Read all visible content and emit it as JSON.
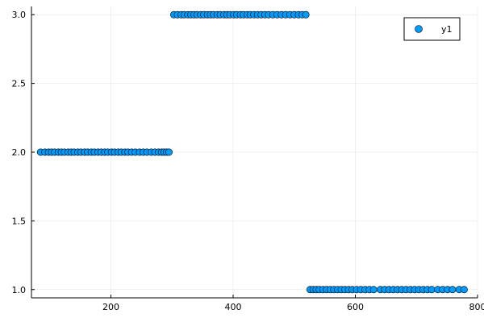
{
  "chart_data": {
    "type": "scatter",
    "title": "",
    "xlabel": "",
    "ylabel": "",
    "xlim": [
      70,
      800
    ],
    "ylim": [
      0.94,
      3.06
    ],
    "x_ticks": [
      200,
      400,
      600,
      800
    ],
    "y_ticks": [
      1.0,
      1.5,
      2.0,
      2.5,
      3.0
    ],
    "x_tick_labels": [
      "200",
      "400",
      "600",
      "800"
    ],
    "y_tick_labels": [
      "1.0",
      "1.5",
      "2.0",
      "2.5",
      "3.0"
    ],
    "grid": true,
    "legend_position": "top-right",
    "series": [
      {
        "name": "y1",
        "color": "#009AFA",
        "points": [
          [
            85,
            2
          ],
          [
            92,
            2
          ],
          [
            98,
            2
          ],
          [
            103,
            2
          ],
          [
            108,
            2
          ],
          [
            114,
            2
          ],
          [
            119,
            2
          ],
          [
            124,
            2
          ],
          [
            130,
            2
          ],
          [
            135,
            2
          ],
          [
            140,
            2
          ],
          [
            146,
            2
          ],
          [
            151,
            2
          ],
          [
            157,
            2
          ],
          [
            162,
            2
          ],
          [
            168,
            2
          ],
          [
            173,
            2
          ],
          [
            179,
            2
          ],
          [
            184,
            2
          ],
          [
            190,
            2
          ],
          [
            195,
            2
          ],
          [
            201,
            2
          ],
          [
            206,
            2
          ],
          [
            212,
            2
          ],
          [
            217,
            2
          ],
          [
            223,
            2
          ],
          [
            228,
            2
          ],
          [
            234,
            2
          ],
          [
            240,
            2
          ],
          [
            247,
            2
          ],
          [
            253,
            2
          ],
          [
            259,
            2
          ],
          [
            266,
            2
          ],
          [
            272,
            2
          ],
          [
            278,
            2
          ],
          [
            283,
            2
          ],
          [
            287,
            2
          ],
          [
            291,
            2
          ],
          [
            295,
            2
          ],
          [
            303,
            3
          ],
          [
            309,
            3
          ],
          [
            315,
            3
          ],
          [
            320,
            3
          ],
          [
            326,
            3
          ],
          [
            331,
            3
          ],
          [
            336,
            3
          ],
          [
            341,
            3
          ],
          [
            347,
            3
          ],
          [
            352,
            3
          ],
          [
            358,
            3
          ],
          [
            363,
            3
          ],
          [
            368,
            3
          ],
          [
            374,
            3
          ],
          [
            379,
            3
          ],
          [
            385,
            3
          ],
          [
            390,
            3
          ],
          [
            395,
            3
          ],
          [
            401,
            3
          ],
          [
            406,
            3
          ],
          [
            412,
            3
          ],
          [
            417,
            3
          ],
          [
            423,
            3
          ],
          [
            428,
            3
          ],
          [
            434,
            3
          ],
          [
            440,
            3
          ],
          [
            446,
            3
          ],
          [
            452,
            3
          ],
          [
            458,
            3
          ],
          [
            465,
            3
          ],
          [
            472,
            3
          ],
          [
            479,
            3
          ],
          [
            486,
            3
          ],
          [
            493,
            3
          ],
          [
            500,
            3
          ],
          [
            507,
            3
          ],
          [
            513,
            3
          ],
          [
            519,
            3
          ],
          [
            526,
            1
          ],
          [
            531,
            1
          ],
          [
            536,
            1
          ],
          [
            541,
            1
          ],
          [
            547,
            1
          ],
          [
            553,
            1
          ],
          [
            559,
            1
          ],
          [
            565,
            1
          ],
          [
            571,
            1
          ],
          [
            577,
            1
          ],
          [
            583,
            1
          ],
          [
            589,
            1
          ],
          [
            595,
            1
          ],
          [
            602,
            1
          ],
          [
            609,
            1
          ],
          [
            616,
            1
          ],
          [
            623,
            1
          ],
          [
            630,
            1
          ],
          [
            641,
            1
          ],
          [
            648,
            1
          ],
          [
            655,
            1
          ],
          [
            662,
            1
          ],
          [
            669,
            1
          ],
          [
            676,
            1
          ],
          [
            683,
            1
          ],
          [
            690,
            1
          ],
          [
            697,
            1
          ],
          [
            704,
            1
          ],
          [
            711,
            1
          ],
          [
            718,
            1
          ],
          [
            725,
            1
          ],
          [
            735,
            1
          ],
          [
            743,
            1
          ],
          [
            751,
            1
          ],
          [
            759,
            1
          ],
          [
            770,
            1
          ],
          [
            778,
            1
          ]
        ]
      }
    ]
  }
}
